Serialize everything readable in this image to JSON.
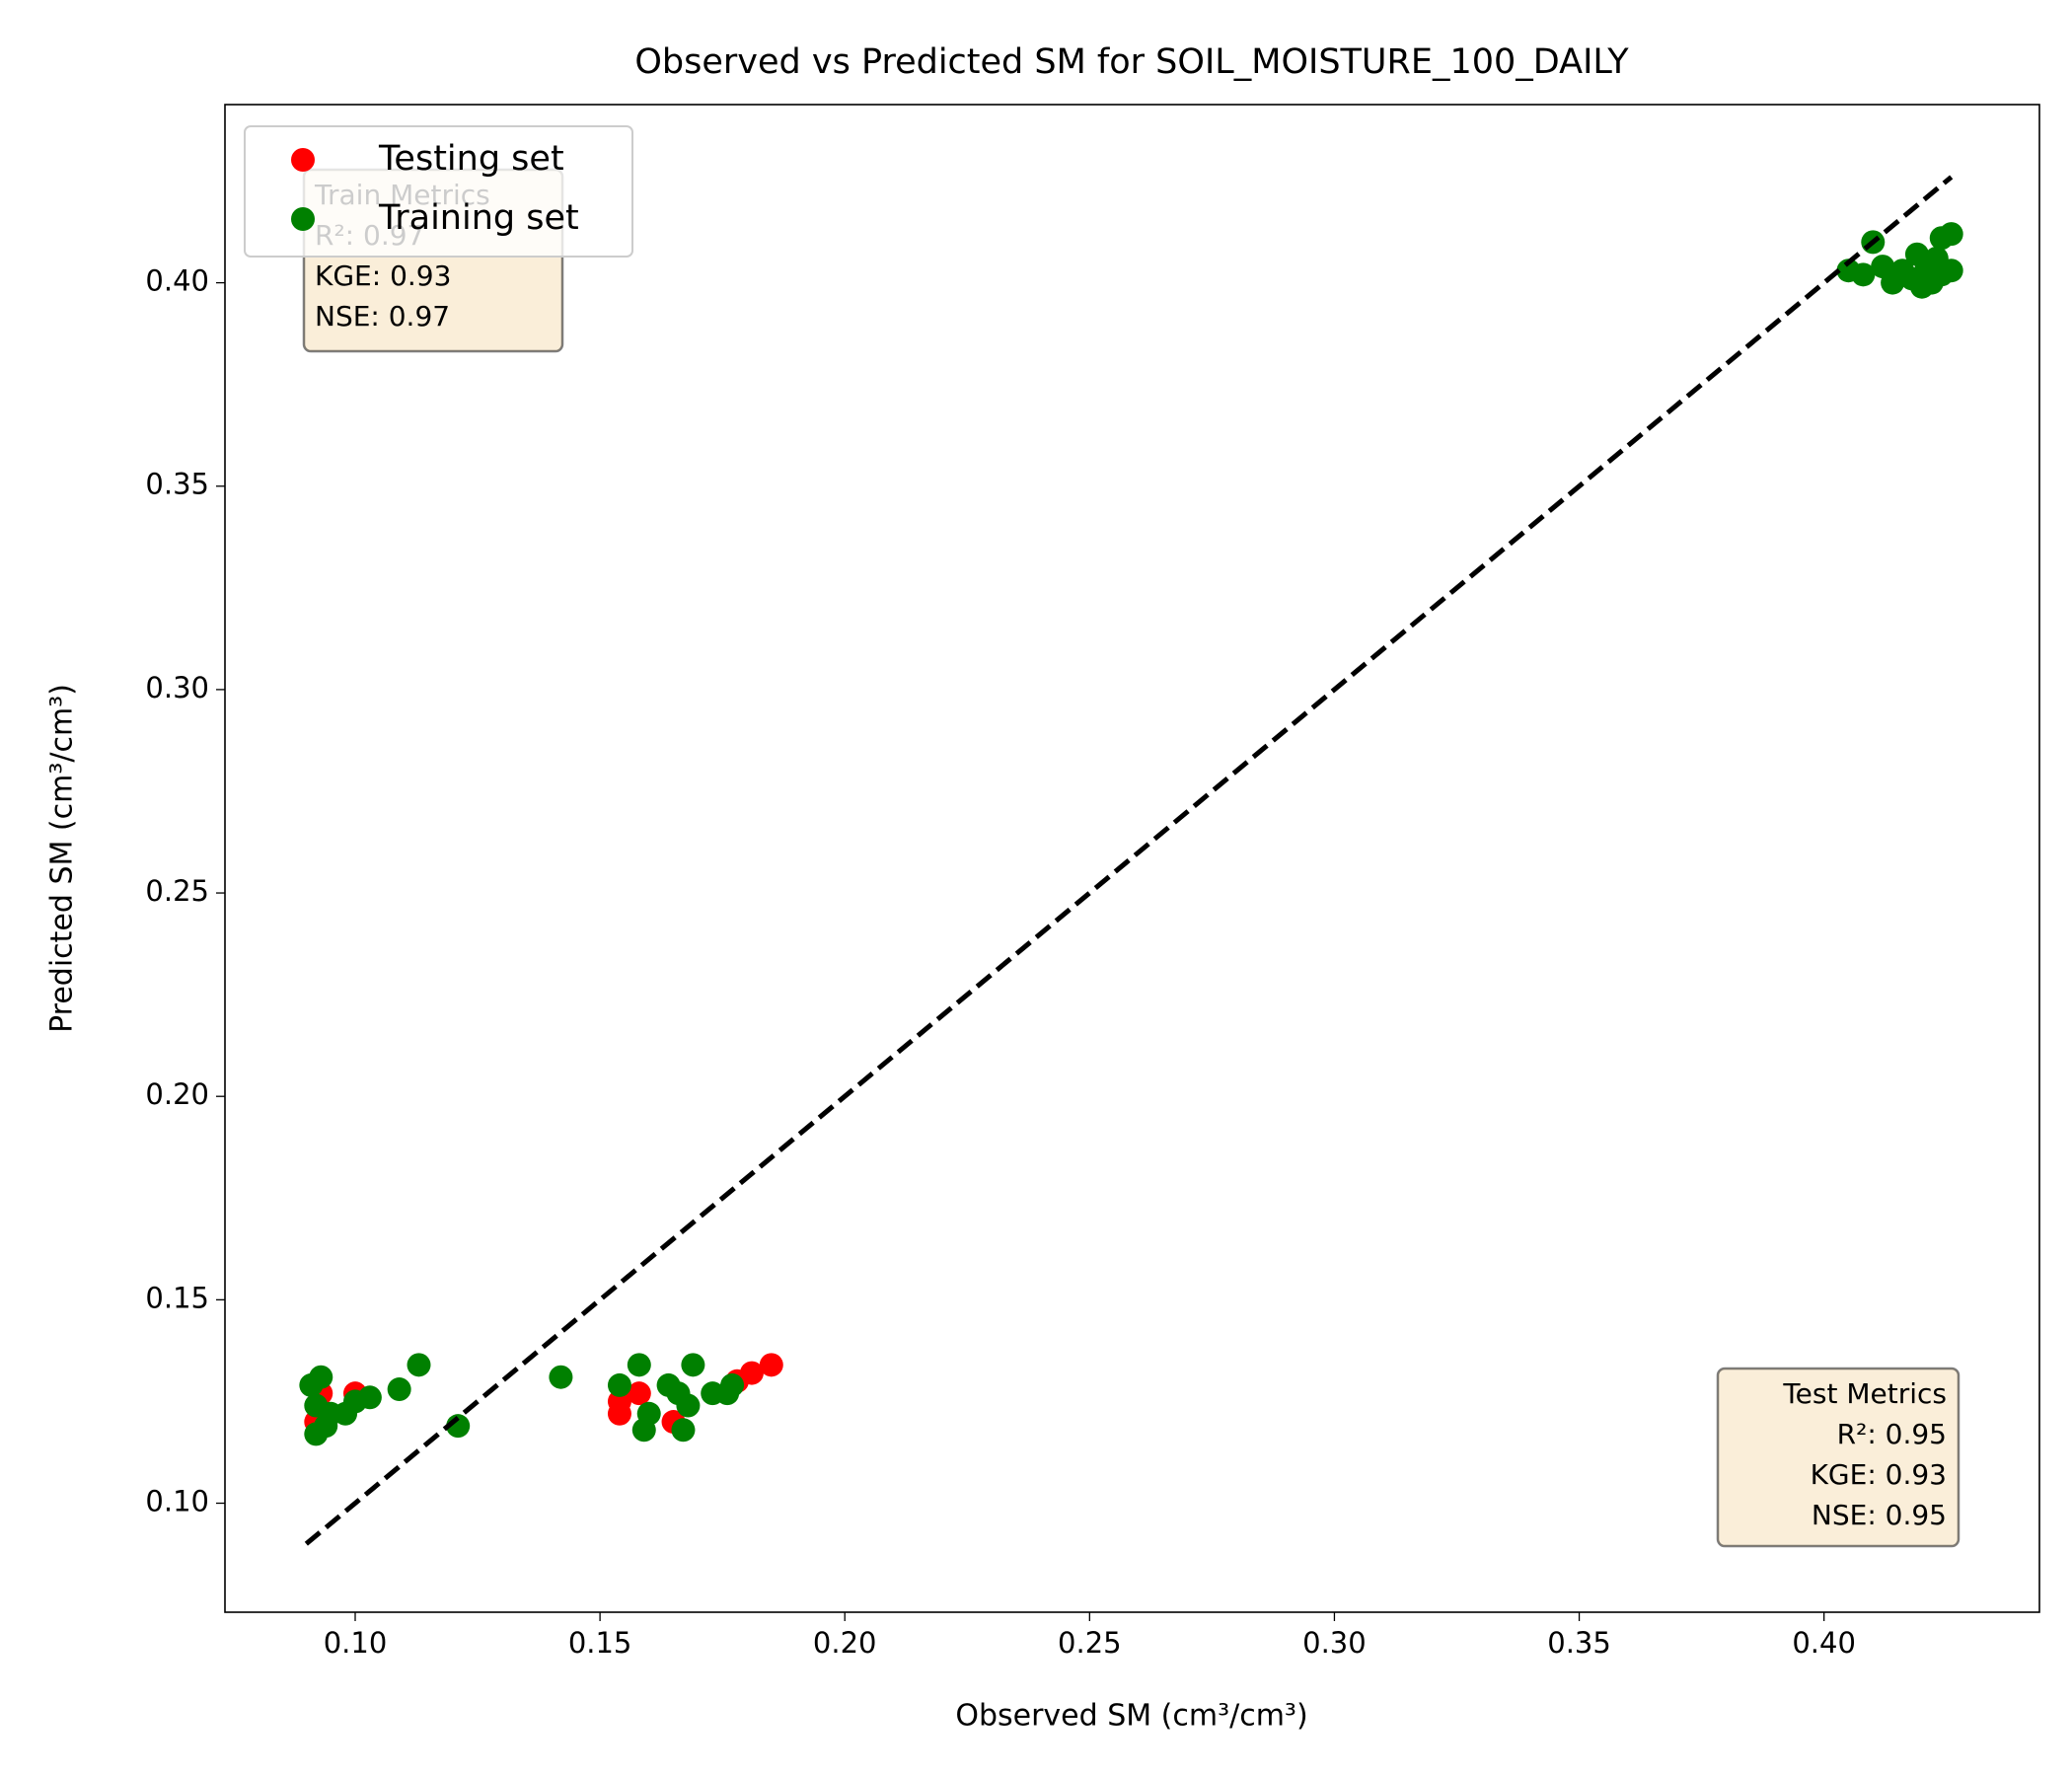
{
  "chart_data": {
    "type": "scatter",
    "title": "Observed vs Predicted SM for SOIL_MOISTURE_100_DAILY",
    "x_label": "Observed SM (cm³/cm³)",
    "y_label": "Predicted SM (cm³/cm³)",
    "xlim": [
      0.0734,
      0.444
    ],
    "ylim": [
      0.0732,
      0.4438
    ],
    "xticks": [
      {
        "value": 0.1,
        "label": "0.10"
      },
      {
        "value": 0.15,
        "label": "0.15"
      },
      {
        "value": 0.2,
        "label": "0.20"
      },
      {
        "value": 0.25,
        "label": "0.25"
      },
      {
        "value": 0.3,
        "label": "0.30"
      },
      {
        "value": 0.35,
        "label": "0.35"
      },
      {
        "value": 0.4,
        "label": "0.40"
      }
    ],
    "yticks": [
      {
        "value": 0.1,
        "label": "0.10"
      },
      {
        "value": 0.15,
        "label": "0.15"
      },
      {
        "value": 0.2,
        "label": "0.20"
      },
      {
        "value": 0.25,
        "label": "0.25"
      },
      {
        "value": 0.3,
        "label": "0.30"
      },
      {
        "value": 0.35,
        "label": "0.35"
      },
      {
        "value": 0.4,
        "label": "0.40"
      }
    ],
    "grid": false,
    "legend_loc": "upper left",
    "series": [
      {
        "name": "Testing set",
        "color": "#ff0000",
        "x": [
          0.093,
          0.092,
          0.1,
          0.154,
          0.154,
          0.158,
          0.165,
          0.178,
          0.181,
          0.185
        ],
        "values": [
          0.127,
          0.12,
          0.127,
          0.122,
          0.125,
          0.127,
          0.12,
          0.13,
          0.132,
          0.134
        ]
      },
      {
        "name": "Training set",
        "color": "#008000",
        "x": [
          0.091,
          0.093,
          0.092,
          0.092,
          0.094,
          0.095,
          0.098,
          0.1,
          0.103,
          0.109,
          0.113,
          0.121,
          0.142,
          0.154,
          0.158,
          0.159,
          0.16,
          0.164,
          0.166,
          0.167,
          0.168,
          0.169,
          0.173,
          0.176,
          0.177,
          0.405,
          0.408,
          0.41,
          0.412,
          0.414,
          0.416,
          0.418,
          0.419,
          0.42,
          0.421,
          0.422,
          0.423,
          0.424,
          0.424,
          0.426,
          0.426
        ],
        "values": [
          0.129,
          0.131,
          0.124,
          0.117,
          0.119,
          0.122,
          0.122,
          0.125,
          0.126,
          0.128,
          0.134,
          0.119,
          0.131,
          0.129,
          0.134,
          0.118,
          0.122,
          0.129,
          0.127,
          0.118,
          0.124,
          0.134,
          0.127,
          0.127,
          0.129,
          0.403,
          0.402,
          0.41,
          0.404,
          0.4,
          0.403,
          0.401,
          0.407,
          0.399,
          0.404,
          0.4,
          0.406,
          0.402,
          0.411,
          0.412,
          0.403
        ]
      }
    ],
    "reference_line": {
      "color": "#000000",
      "x": [
        0.09,
        0.426
      ],
      "values": [
        0.09,
        0.426
      ]
    },
    "train_metrics": [
      "Train Metrics",
      "R²: 0.97",
      "KGE: 0.93",
      "NSE: 0.97"
    ],
    "test_metrics": [
      "Test Metrics",
      "R²: 0.95",
      "KGE: 0.93",
      "NSE: 0.95"
    ]
  }
}
